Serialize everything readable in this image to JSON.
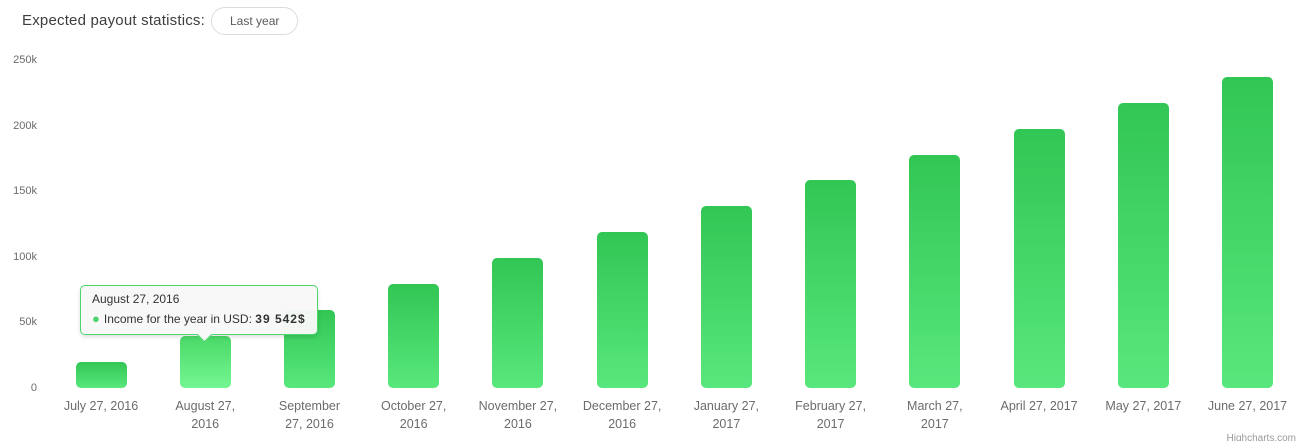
{
  "header": {
    "title": "Expected payout statistics:",
    "range_button_label": "Last year"
  },
  "tooltip": {
    "title": "August 27, 2016",
    "series_label": "Income for the year in USD:",
    "value": "39 542$"
  },
  "credits_label": "Highcharts.com",
  "colors": {
    "bar_gradient_top": "#32c654",
    "bar_gradient_bottom": "#58e77c",
    "bar_hover_gradient_top": "#4ad967",
    "bar_hover_gradient_bottom": "#74f692",
    "tooltip_border": "#4bd76b",
    "tooltip_bullet": "#4dd46e",
    "axis_label_color": "#6b6b6b"
  },
  "chart_data": {
    "type": "bar",
    "title": "Expected payout statistics",
    "series": [
      {
        "name": "Income for the year in USD",
        "values": [
          19771,
          39542,
          59313,
          79084,
          98855,
          118626,
          138397,
          158168,
          177939,
          197710,
          217481,
          237252
        ]
      }
    ],
    "categories": [
      "July 27, 2016",
      "August 27, 2016",
      "September 27, 2016",
      "October 27, 2016",
      "November 27, 2016",
      "December 27, 2016",
      "January 27, 2017",
      "February 27, 2017",
      "March 27, 2017",
      "April 27, 2017",
      "May 27, 2017",
      "June 27, 2017"
    ],
    "category_tick_lines": [
      "July 27, 2016",
      "August 27,\n2016",
      "September\n27, 2016",
      "October 27,\n2016",
      "November 27,\n2016",
      "December 27,\n2016",
      "January 27,\n2017",
      "February 27,\n2017",
      "March 27,\n2017",
      "April 27, 2017",
      "May 27, 2017",
      "June 27, 2017"
    ],
    "xlabel": "",
    "ylabel": "",
    "ylim": [
      0,
      250000
    ],
    "yticks": [
      {
        "value": 0,
        "label": "0"
      },
      {
        "value": 50000,
        "label": "50k"
      },
      {
        "value": 100000,
        "label": "100k"
      },
      {
        "value": 150000,
        "label": "150k"
      },
      {
        "value": 200000,
        "label": "200k"
      },
      {
        "value": 250000,
        "label": "250k"
      }
    ],
    "grid": false,
    "legend": false,
    "hovered_bar_index": 1,
    "hovered_point": {
      "category": "August 27, 2016",
      "value_usd": 39542
    }
  }
}
